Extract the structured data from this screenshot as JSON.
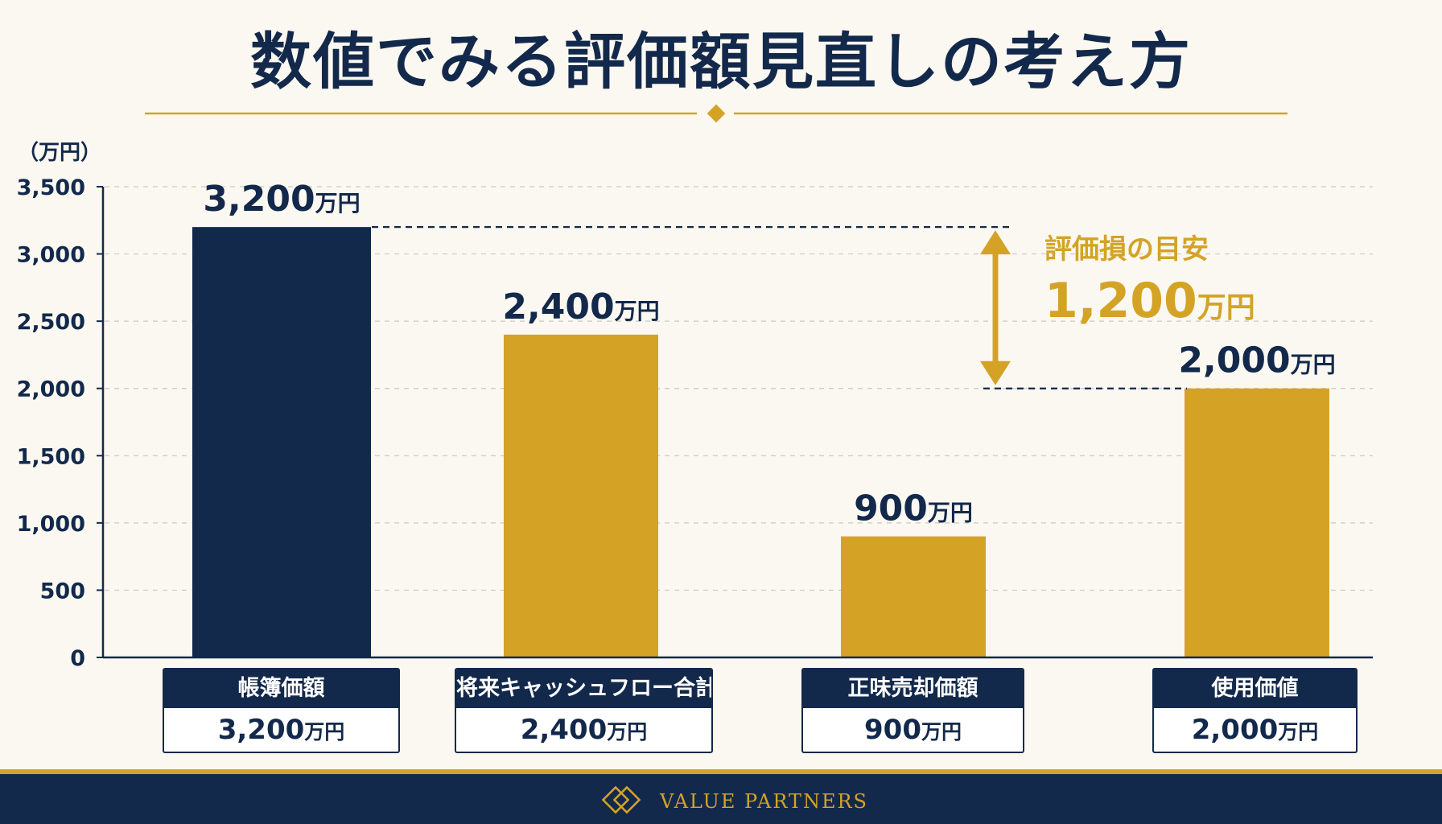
{
  "title": "数値でみる評価額見直しの考え方",
  "chart_data": {
    "type": "bar",
    "unit_label": "（万円）",
    "unit": "万円",
    "ylim": [
      0,
      3500
    ],
    "yticks": [
      "0",
      "500",
      "1,000",
      "1,500",
      "2,000",
      "2,500",
      "3,000",
      "3,500"
    ],
    "grid": true,
    "categories": [
      "帳簿価額",
      "将来キャッシュフロー合計",
      "正味売却価額",
      "使用価値"
    ],
    "values": [
      3200,
      2400,
      900,
      2000
    ],
    "value_labels": [
      "3,200",
      "2,400",
      "900",
      "2,000"
    ],
    "bar_colors": [
      "#13294b",
      "#d4a326",
      "#d4a326",
      "#d4a326"
    ],
    "annotation": {
      "label": "評価損の目安",
      "value": 1200,
      "value_label": "1,200",
      "from": 3200,
      "to": 2000
    }
  },
  "footer": {
    "brand": "VALUE PARTNERS"
  },
  "colors": {
    "navy": "#13294b",
    "gold": "#d4a326",
    "background": "#fbf8f1"
  }
}
